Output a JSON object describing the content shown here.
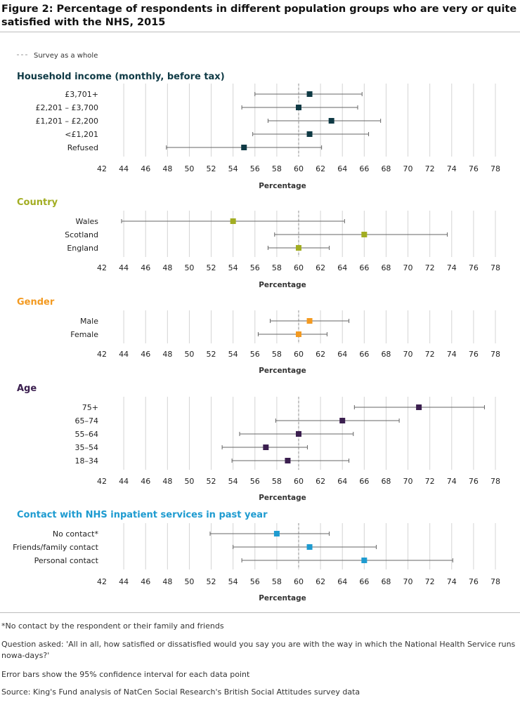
{
  "title": "Figure 2: Percentage of respondents in different population groups who are very or quite satisfied with the NHS, 2015",
  "legend_label": "Survey as a whole",
  "footnotes": {
    "no_contact": "*No contact by the respondent or their family and friends",
    "question": "Question asked: 'All in all, how satisfied or dissatisfied would you say you are with the way in which the National Health Service runs nowa-days?'",
    "error_bars": "Error bars show the 95% confidence interval for each data point",
    "source": "Source: King's Fund analysis of NatCen Social Research's British Social Attitudes survey data"
  },
  "chart_data": [
    {
      "type": "scatter",
      "title": "Household income (monthly, before tax)",
      "color": "#0f3a45",
      "xlabel": "Percentage",
      "xlim": [
        42,
        78
      ],
      "xticks": [
        42,
        44,
        46,
        48,
        50,
        52,
        54,
        56,
        58,
        60,
        62,
        64,
        66,
        68,
        70,
        72,
        74,
        76,
        78
      ],
      "reference_value": 60,
      "categories": [
        "£3,701+",
        "£2,201 – £3,700",
        "£1,201 – £2,200",
        "<£1,201",
        "Refused"
      ],
      "values": [
        61,
        60,
        63,
        61,
        55
      ],
      "ci_low": [
        56,
        54.8,
        57.2,
        55.8,
        47.9
      ],
      "ci_high": [
        65.8,
        65.4,
        67.5,
        66.4,
        62.1
      ]
    },
    {
      "type": "scatter",
      "title": "Country",
      "color": "#a2ad22",
      "xlabel": "Percentage",
      "xlim": [
        42,
        78
      ],
      "xticks": [
        42,
        44,
        46,
        48,
        50,
        52,
        54,
        56,
        58,
        60,
        62,
        64,
        66,
        68,
        70,
        72,
        74,
        76,
        78
      ],
      "reference_value": 60,
      "categories": [
        "Wales",
        "Scotland",
        "England"
      ],
      "values": [
        54,
        66,
        60
      ],
      "ci_low": [
        43.8,
        57.8,
        57.2
      ],
      "ci_high": [
        64.2,
        73.6,
        62.8
      ]
    },
    {
      "type": "scatter",
      "title": "Gender",
      "color": "#f39a21",
      "xlabel": "Percentage",
      "xlim": [
        42,
        78
      ],
      "xticks": [
        42,
        44,
        46,
        48,
        50,
        52,
        54,
        56,
        58,
        60,
        62,
        64,
        66,
        68,
        70,
        72,
        74,
        76,
        78
      ],
      "reference_value": 60,
      "categories": [
        "Male",
        "Female"
      ],
      "values": [
        61,
        60
      ],
      "ci_low": [
        57.4,
        56.3
      ],
      "ci_high": [
        64.6,
        62.6
      ]
    },
    {
      "type": "scatter",
      "title": "Age",
      "color": "#3b1f4f",
      "xlabel": "Percentage",
      "xlim": [
        42,
        78
      ],
      "xticks": [
        42,
        44,
        46,
        48,
        50,
        52,
        54,
        56,
        58,
        60,
        62,
        64,
        66,
        68,
        70,
        72,
        74,
        76,
        78
      ],
      "reference_value": 60,
      "categories": [
        "75+",
        "65–74",
        "55–64",
        "35–54",
        "18–34"
      ],
      "values": [
        71,
        64,
        60,
        57,
        59
      ],
      "ci_low": [
        65.1,
        57.9,
        54.6,
        53,
        53.9
      ],
      "ci_high": [
        77,
        69.2,
        65,
        60.8,
        64.6
      ]
    },
    {
      "type": "scatter",
      "title": "Contact with NHS inpatient services in past year",
      "color": "#1e9bd0",
      "xlabel": "Percentage",
      "xlim": [
        42,
        78
      ],
      "xticks": [
        42,
        44,
        46,
        48,
        50,
        52,
        54,
        56,
        58,
        60,
        62,
        64,
        66,
        68,
        70,
        72,
        74,
        76,
        78
      ],
      "reference_value": 60,
      "categories": [
        "No contact*",
        "Friends/family contact",
        "Personal contact"
      ],
      "values": [
        58,
        61,
        66
      ],
      "ci_low": [
        51.9,
        54,
        54.8
      ],
      "ci_high": [
        62.8,
        67.1,
        74.1
      ]
    }
  ]
}
